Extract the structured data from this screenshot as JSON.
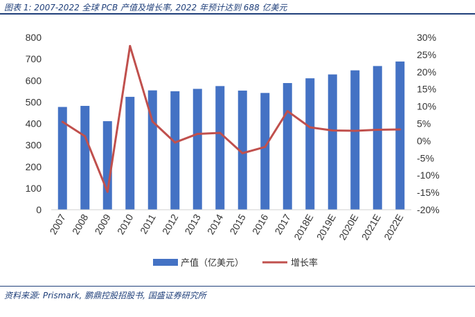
{
  "caption": "图表 1: 2007-2022 全球 PCB 产值及增长率, 2022 年预计达到 688 亿美元",
  "source": "资料来源: Prismark, 鹏鼎控股招股书, 国盛证券研究所",
  "chart_data": {
    "type": "bar",
    "title": "",
    "categories": [
      "2007",
      "2008",
      "2009",
      "2010",
      "2011",
      "2012",
      "2013",
      "2014",
      "2015",
      "2016",
      "2017",
      "2018E",
      "2019E",
      "2020E",
      "2021E",
      "2022E"
    ],
    "series": [
      {
        "name": "产值（亿美元）",
        "type": "bar",
        "axis": "left",
        "color": "#4472c4",
        "values": [
          477,
          482,
          411,
          524,
          554,
          550,
          561,
          574,
          553,
          542,
          588,
          610,
          628,
          647,
          667,
          688
        ]
      },
      {
        "name": "增长率",
        "type": "line",
        "axis": "right",
        "color": "#c0504d",
        "values": [
          5.5,
          1.3,
          -14.8,
          27.5,
          5.6,
          -0.5,
          2.0,
          2.3,
          -3.6,
          -1.8,
          8.6,
          3.9,
          3.0,
          2.9,
          3.2,
          3.3
        ]
      }
    ],
    "y_left": {
      "min": 0,
      "max": 800,
      "ticks": [
        "0",
        "100",
        "200",
        "300",
        "400",
        "500",
        "600",
        "700",
        "800"
      ]
    },
    "y_right": {
      "min": -20,
      "max": 30,
      "ticks": [
        "-20%",
        "-15%",
        "-10%",
        "-5%",
        "0%",
        "5%",
        "10%",
        "15%",
        "20%",
        "25%",
        "30%"
      ]
    },
    "grid": false,
    "legend": "bottom"
  }
}
